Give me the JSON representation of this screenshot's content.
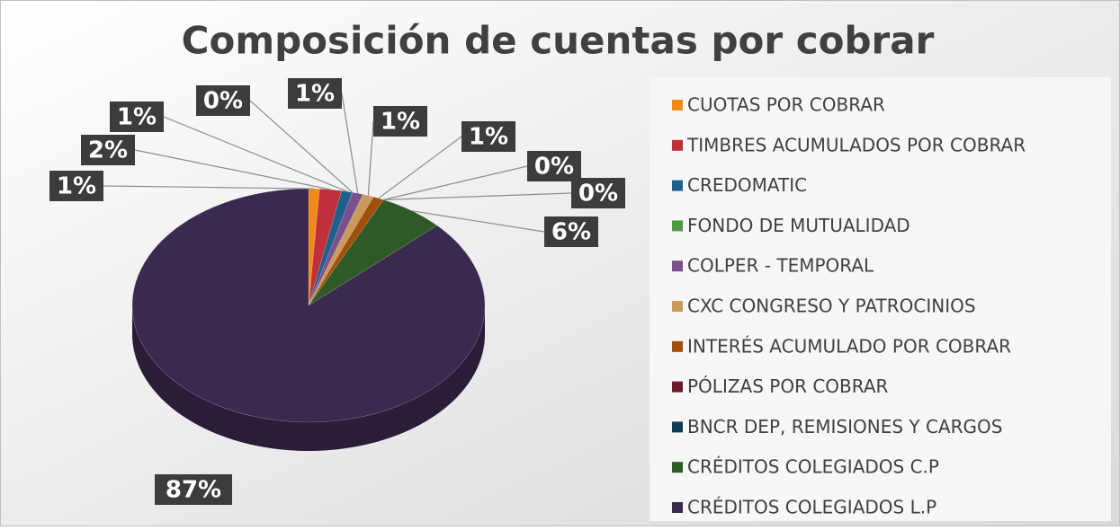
{
  "chart_data": {
    "type": "pie",
    "title": "Composición de cuentas por cobrar",
    "categories": [
      "CUOTAS POR COBRAR",
      "TIMBRES ACUMULADOS POR COBRAR",
      "CREDOMATIC",
      "FONDO DE MUTUALIDAD",
      "COLPER - TEMPORAL",
      "CXC CONGRESO Y PATROCINIOS",
      "INTERÉS ACUMULADO POR COBRAR",
      "PÓLIZAS POR COBRAR",
      "BNCR DEP, REMISIONES Y CARGOS",
      "CRÉDITOS COLEGIADOS  C.P",
      "CRÉDITOS COLEGIADOS  L.P"
    ],
    "values": [
      1,
      2,
      1,
      0,
      1,
      1,
      1,
      0,
      0,
      6,
      87
    ],
    "value_labels": [
      "1%",
      "2%",
      "1%",
      "0%",
      "1%",
      "1%",
      "1%",
      "0%",
      "0%",
      "6%",
      "87%"
    ],
    "colors": [
      "#f28a1a",
      "#c0303c",
      "#1f5f8b",
      "#4f9a45",
      "#7a508f",
      "#c99a5b",
      "#a34f0c",
      "#6b1c26",
      "#103b56",
      "#2f5a27",
      "#3b2a4f"
    ],
    "legend": "right"
  }
}
